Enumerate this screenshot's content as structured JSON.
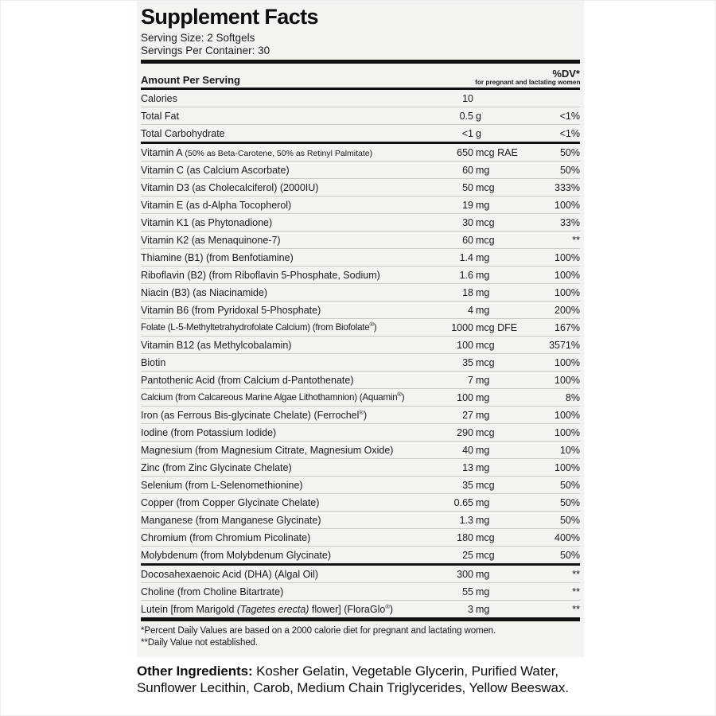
{
  "colors": {
    "page_background": "#ffffff",
    "label_background": "#f4f3ef",
    "rule": "#121212",
    "row_separator": "#c9c7c1",
    "text": "#1a1a1a"
  },
  "label": {
    "title": "Supplement Facts",
    "serving_size": "Serving Size: 2 Softgels",
    "servings_per_container": "Servings Per Container: 30",
    "header": {
      "amount_label": "Amount Per Serving",
      "dv_label": "%DV*",
      "dv_sublabel": "for pregnant and lactating women"
    },
    "rows": [
      {
        "name_parts": [
          {
            "t": "Calories"
          }
        ],
        "amount": "10",
        "unit": "",
        "dv": ""
      },
      {
        "name_parts": [
          {
            "t": "Total Fat"
          }
        ],
        "amount": "0.5",
        "unit": "g",
        "dv": "<1%"
      },
      {
        "name_parts": [
          {
            "t": "Total Carbohydrate"
          }
        ],
        "amount": "<1",
        "unit": "g",
        "dv": "<1%",
        "rule_after": "mid"
      },
      {
        "name_parts": [
          {
            "t": "Vitamin A "
          },
          {
            "t": "(50% as Beta-Carotene, 50% as Retinyl Palmitate)",
            "small": true
          }
        ],
        "amount": "650",
        "unit": "mcg RAE",
        "dv": "50%"
      },
      {
        "name_parts": [
          {
            "t": "Vitamin C (as Calcium Ascorbate)"
          }
        ],
        "amount": "60",
        "unit": "mg",
        "dv": "50%"
      },
      {
        "name_parts": [
          {
            "t": "Vitamin D3 (as Cholecalciferol) (2000IU)"
          }
        ],
        "amount": "50",
        "unit": "mcg",
        "dv": "333%"
      },
      {
        "name_parts": [
          {
            "t": "Vitamin E (as d-Alpha Tocopherol)"
          }
        ],
        "amount": "19",
        "unit": "mg",
        "dv": "100%"
      },
      {
        "name_parts": [
          {
            "t": "Vitamin K1 (as Phytonadione)"
          }
        ],
        "amount": "30",
        "unit": "mcg",
        "dv": "33%"
      },
      {
        "name_parts": [
          {
            "t": "Vitamin K2 (as Menaquinone-7)"
          }
        ],
        "amount": "60",
        "unit": "mcg",
        "dv": "**"
      },
      {
        "name_parts": [
          {
            "t": "Thiamine (B1) (from Benfotiamine)"
          }
        ],
        "amount": "1.4",
        "unit": "mg",
        "dv": "100%"
      },
      {
        "name_parts": [
          {
            "t": "Riboflavin (B2) (from Riboflavin 5-Phosphate, Sodium)"
          }
        ],
        "amount": "1.6",
        "unit": "mg",
        "dv": "100%"
      },
      {
        "name_parts": [
          {
            "t": "Niacin (B3) (as Niacinamide)"
          }
        ],
        "amount": "18",
        "unit": "mg",
        "dv": "100%"
      },
      {
        "name_parts": [
          {
            "t": "Vitamin B6 (from Pyridoxal 5-Phosphate)"
          }
        ],
        "amount": "4",
        "unit": "mg",
        "dv": "200%"
      },
      {
        "name_parts": [
          {
            "t": "Folate (L-5-Methyltetrahydrofolate Calcium) (from Biofolate®)"
          }
        ],
        "amount": "1000",
        "unit": "mcg DFE",
        "dv": "167%",
        "condensed": true
      },
      {
        "name_parts": [
          {
            "t": "Vitamin B12 (as Methylcobalamin)"
          }
        ],
        "amount": "100",
        "unit": "mcg",
        "dv": "3571%"
      },
      {
        "name_parts": [
          {
            "t": "Biotin"
          }
        ],
        "amount": "35",
        "unit": "mcg",
        "dv": "100%"
      },
      {
        "name_parts": [
          {
            "t": "Pantothenic Acid (from Calcium d-Pantothenate)"
          }
        ],
        "amount": "7",
        "unit": "mg",
        "dv": "100%"
      },
      {
        "name_parts": [
          {
            "t": "Calcium (from Calcareous Marine Algae Lithothamnion) (Aquamin®)"
          }
        ],
        "amount": "100",
        "unit": "mg",
        "dv": "8%",
        "condensed": true
      },
      {
        "name_parts": [
          {
            "t": "Iron (as Ferrous Bis-glycinate Chelate) (Ferrochel®)"
          }
        ],
        "amount": "27",
        "unit": "mg",
        "dv": "100%"
      },
      {
        "name_parts": [
          {
            "t": "Iodine (from Potassium Iodide)"
          }
        ],
        "amount": "290",
        "unit": "mcg",
        "dv": "100%"
      },
      {
        "name_parts": [
          {
            "t": "Magnesium (from Magnesium Citrate, Magnesium Oxide)"
          }
        ],
        "amount": "40",
        "unit": "mg",
        "dv": "10%"
      },
      {
        "name_parts": [
          {
            "t": "Zinc (from Zinc Glycinate Chelate)"
          }
        ],
        "amount": "13",
        "unit": "mg",
        "dv": "100%"
      },
      {
        "name_parts": [
          {
            "t": "Selenium (from L-Selenomethionine)"
          }
        ],
        "amount": "35",
        "unit": "mcg",
        "dv": "50%"
      },
      {
        "name_parts": [
          {
            "t": "Copper (from Copper Glycinate Chelate)"
          }
        ],
        "amount": "0.65",
        "unit": "mg",
        "dv": "50%"
      },
      {
        "name_parts": [
          {
            "t": "Manganese (from Manganese Glycinate)"
          }
        ],
        "amount": "1.3",
        "unit": "mg",
        "dv": "50%"
      },
      {
        "name_parts": [
          {
            "t": "Chromium (from Chromium Picolinate)"
          }
        ],
        "amount": "180",
        "unit": "mcg",
        "dv": "400%"
      },
      {
        "name_parts": [
          {
            "t": "Molybdenum (from Molybdenum Glycinate)"
          }
        ],
        "amount": "25",
        "unit": "mcg",
        "dv": "50%",
        "rule_after": "mid"
      },
      {
        "name_parts": [
          {
            "t": "Docosahexaenoic Acid (DHA) (Algal Oil)"
          }
        ],
        "amount": "300",
        "unit": "mg",
        "dv": "**"
      },
      {
        "name_parts": [
          {
            "t": "Choline (from Choline Bitartrate)"
          }
        ],
        "amount": "55",
        "unit": "mg",
        "dv": "**"
      },
      {
        "name_parts": [
          {
            "t": "Lutein [from Marigold "
          },
          {
            "t": "(Tagetes erecta)",
            "italic": true
          },
          {
            "t": " flower] (FloraGlo®)"
          }
        ],
        "amount": "3",
        "unit": "mg",
        "dv": "**",
        "rule_after": "heavy"
      }
    ],
    "footnotes": [
      "*Percent Daily Values are based on a 2000 calorie diet for pregnant and lactating women.",
      "**Daily Value not established."
    ]
  },
  "other_ingredients": {
    "lead": "Other Ingredients:",
    "text": " Kosher Gelatin, Vegetable Glycerin, Purified Water, Sunflower Lecithin, Carob, Medium Chain Triglycerides, Yellow Beeswax."
  }
}
